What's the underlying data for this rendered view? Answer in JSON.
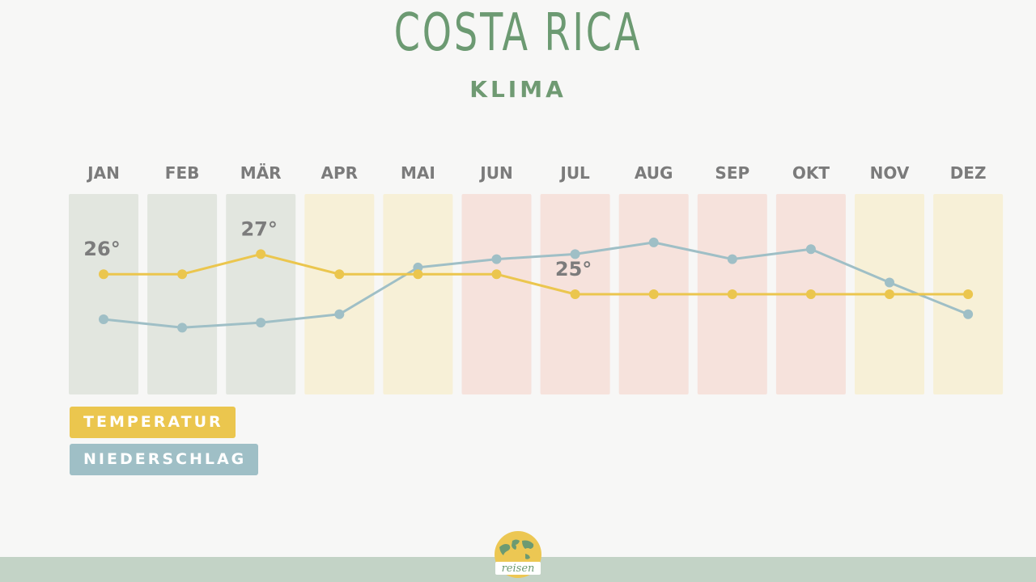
{
  "header": {
    "title": "COSTA RICA",
    "subtitle": "KLIMA"
  },
  "chart_data": {
    "type": "line",
    "title": "COSTA RICA",
    "subtitle": "KLIMA",
    "categories": [
      "JAN",
      "FEB",
      "MÄR",
      "APR",
      "MAI",
      "JUN",
      "JUL",
      "AUG",
      "SEP",
      "OKT",
      "NOV",
      "DEZ"
    ],
    "column_colors": [
      "#e2e6df",
      "#e2e6df",
      "#e2e6df",
      "#f7f0d7",
      "#f7f0d7",
      "#f6e2dc",
      "#f6e2dc",
      "#f6e2dc",
      "#f6e2dc",
      "#f6e2dc",
      "#f7f0d7",
      "#f7f0d7"
    ],
    "series": [
      {
        "name": "TEMPERATUR",
        "color": "#ebc64e",
        "values": [
          26,
          26,
          27,
          26,
          26,
          26,
          25,
          25,
          25,
          25,
          25,
          25
        ],
        "ylim": [
          20,
          30
        ]
      },
      {
        "name": "NIEDERSCHLAG",
        "color": "#9fbfc6",
        "values": [
          15,
          10,
          13,
          18,
          46,
          51,
          54,
          61,
          51,
          57,
          37,
          18
        ],
        "ylim": [
          -30,
          90
        ]
      }
    ],
    "annotations": [
      {
        "category": "JAN",
        "series": "TEMPERATUR",
        "text": "26°"
      },
      {
        "category": "MÄR",
        "series": "TEMPERATUR",
        "text": "27°"
      },
      {
        "category": "JUL",
        "series": "TEMPERATUR",
        "text": "25°"
      }
    ],
    "grid": false,
    "legend": "bottom-left"
  },
  "legend": {
    "temp_label": "TEMPERATUR",
    "rain_label": "NIEDERSCHLAG"
  },
  "colors": {
    "title": "#6c9a72",
    "background": "#f7f7f6",
    "footer": "#c3d3c6"
  },
  "logo": {
    "text": "reisen",
    "icon": "globe-logo-icon"
  }
}
